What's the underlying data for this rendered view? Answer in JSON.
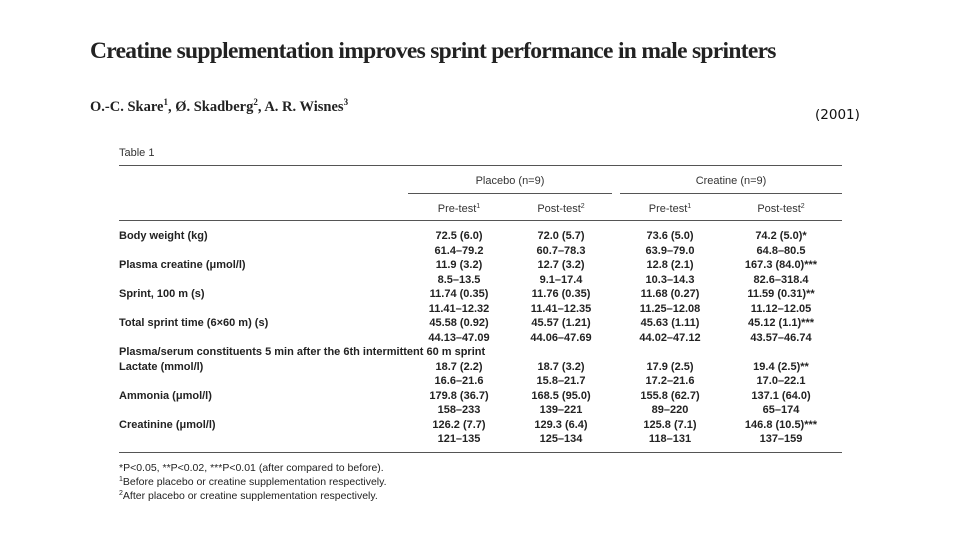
{
  "paper": {
    "title": "Creatine supplementation improves sprint performance in male sprinters",
    "authors": [
      {
        "name": "O.-C. Skare",
        "affil": "1",
        "sep": ", "
      },
      {
        "name": "Ø. Skadberg",
        "affil": "2",
        "sep": ", "
      },
      {
        "name": "A. R. Wisnes",
        "affil": "3",
        "sep": ""
      }
    ],
    "year": "(2001)"
  },
  "table": {
    "caption": "Table 1",
    "groups": [
      "Placebo (n=9)",
      "Creatine (n=9)"
    ],
    "subheaders": [
      {
        "label": "Pre-test",
        "mark": "1"
      },
      {
        "label": "Post-test",
        "mark": "2"
      },
      {
        "label": "Pre-test",
        "mark": "1"
      },
      {
        "label": "Post-test",
        "mark": "2"
      }
    ],
    "rows": [
      {
        "label": "Body weight (kg)",
        "mean": [
          "72.5 (6.0)",
          "72.0 (5.7)",
          "73.6 (5.0)",
          "74.2 (5.0)*"
        ],
        "range": [
          "61.4–79.2",
          "60.7–78.3",
          "63.9–79.0",
          "64.8–80.5"
        ]
      },
      {
        "label": "Plasma creatine (μmol/l)",
        "mean": [
          "11.9 (3.2)",
          "12.7 (3.2)",
          "12.8 (2.1)",
          "167.3 (84.0)***"
        ],
        "range": [
          "8.5–13.5",
          "9.1–17.4",
          "10.3–14.3",
          "82.6–318.4"
        ]
      },
      {
        "label": "Sprint, 100 m (s)",
        "mean": [
          "11.74 (0.35)",
          "11.76 (0.35)",
          "11.68 (0.27)",
          "11.59 (0.31)**"
        ],
        "range": [
          "11.41–12.32",
          "11.41–12.35",
          "11.25–12.08",
          "11.12–12.05"
        ]
      },
      {
        "label": "Total sprint time (6×60 m) (s)",
        "mean": [
          "45.58 (0.92)",
          "45.57 (1.21)",
          "45.63 (1.11)",
          "45.12 (1.1)***"
        ],
        "range": [
          "44.13–47.09",
          "44.06–47.69",
          "44.02–47.12",
          "43.57–46.74"
        ]
      },
      {
        "section": "Plasma/serum constituents 5 min after the 6th intermittent 60 m sprint"
      },
      {
        "label": "Lactate (mmol/l)",
        "mean": [
          "18.7 (2.2)",
          "18.7 (3.2)",
          "17.9 (2.5)",
          "19.4 (2.5)**"
        ],
        "range": [
          "16.6–21.6",
          "15.8–21.7",
          "17.2–21.6",
          "17.0–22.1"
        ]
      },
      {
        "label": "Ammonia (μmol/l)",
        "mean": [
          "179.8 (36.7)",
          "168.5 (95.0)",
          "155.8 (62.7)",
          "137.1 (64.0)"
        ],
        "range": [
          "158–233",
          "139–221",
          "89–220",
          "65–174"
        ]
      },
      {
        "label": "Creatinine (μmol/l)",
        "mean": [
          "126.2 (7.7)",
          "129.3 (6.4)",
          "125.8 (7.1)",
          "146.8 (10.5)***"
        ],
        "range": [
          "121–135",
          "125–134",
          "118–131",
          "137–159"
        ]
      }
    ],
    "footnotes": [
      {
        "mark": "",
        "text": "*P<0.05, **P<0.02, ***P<0.01 (after compared to before)."
      },
      {
        "mark": "1",
        "text": "Before placebo or creatine supplementation respectively."
      },
      {
        "mark": "2",
        "text": "After placebo or creatine supplementation respectively."
      }
    ]
  }
}
